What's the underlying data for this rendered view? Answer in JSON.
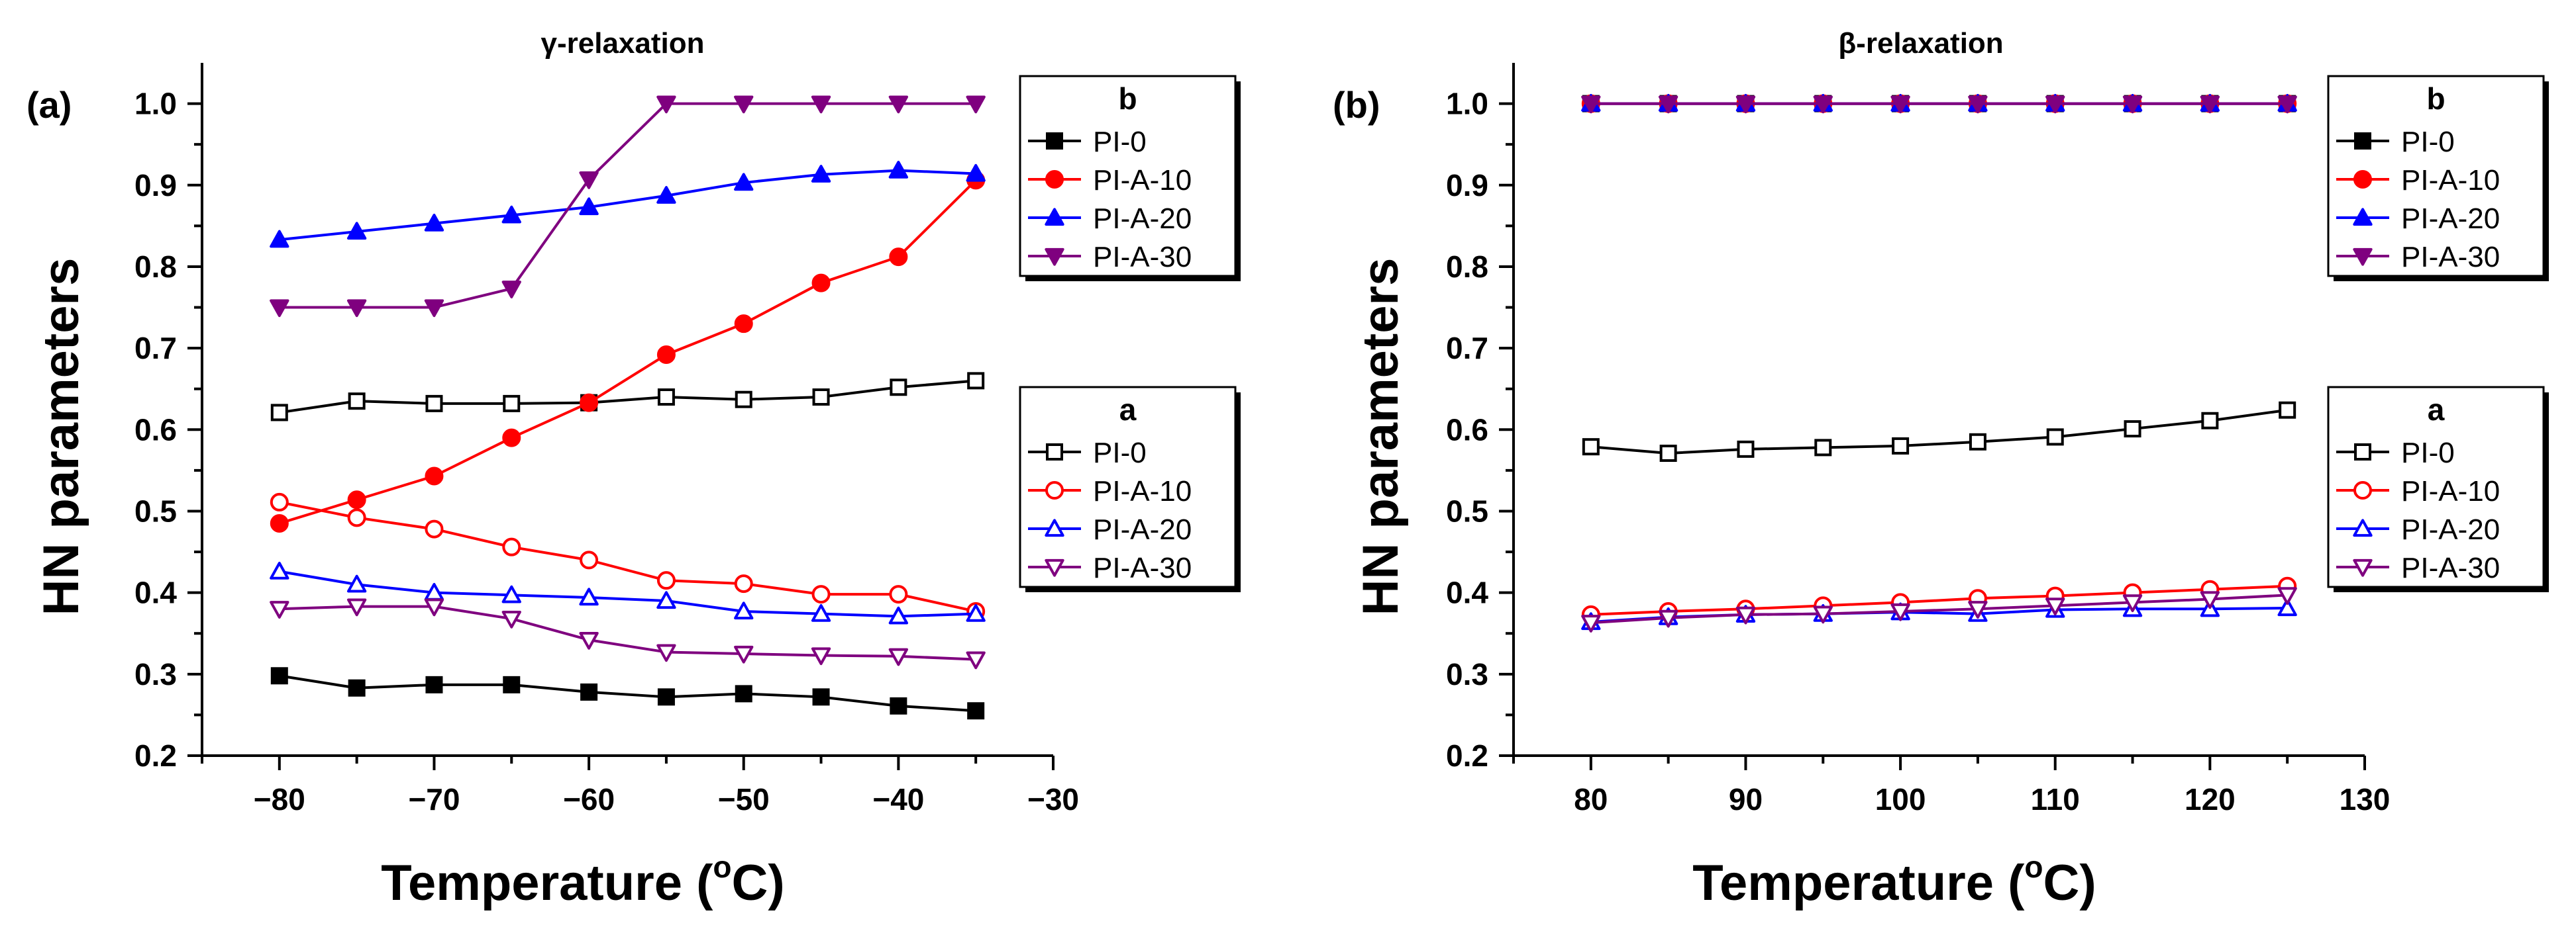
{
  "chart_data": [
    {
      "type": "line",
      "panel_label": "(a)",
      "title": "γ-relaxation",
      "xlabel": "Temperature (",
      "xlabel_sup": "o",
      "xlabel_end": "C)",
      "ylabel": "HN parameters",
      "xlim": [
        -85,
        -30
      ],
      "ylim": [
        0.2,
        1.05
      ],
      "xticks": [
        -80,
        -70,
        -60,
        -50,
        -40,
        -30
      ],
      "xtick_labels": [
        "−80",
        "−70",
        "−60",
        "−50",
        "−40",
        "−30"
      ],
      "yticks": [
        0.2,
        0.3,
        0.4,
        0.5,
        0.6,
        0.7,
        0.8,
        0.9,
        1.0
      ],
      "ytick_labels": [
        "0.2",
        "0.3",
        "0.4",
        "0.5",
        "0.6",
        "0.7",
        "0.8",
        "0.9",
        "1.0"
      ],
      "x": [
        -80,
        -75,
        -70,
        -65,
        -60,
        -55,
        -50,
        -45,
        -40,
        -35
      ],
      "legend_groups": [
        {
          "title": "b",
          "position": "top-right",
          "series": [
            {
              "name": "PI-0",
              "color": "#000000",
              "marker": "square",
              "filled": true,
              "values": [
                0.298,
                0.283,
                0.287,
                0.287,
                0.278,
                0.272,
                0.276,
                0.272,
                0.261,
                0.255
              ]
            },
            {
              "name": "PI-A-10",
              "color": "#ff0000",
              "marker": "circle",
              "filled": true,
              "values": [
                0.485,
                0.514,
                0.543,
                0.59,
                0.633,
                0.692,
                0.73,
                0.78,
                0.812,
                0.906
              ]
            },
            {
              "name": "PI-A-20",
              "color": "#0000ff",
              "marker": "triangle-up",
              "filled": true,
              "values": [
                0.833,
                0.843,
                0.853,
                0.863,
                0.873,
                0.887,
                0.903,
                0.913,
                0.918,
                0.914
              ]
            },
            {
              "name": "PI-A-30",
              "color": "#7f007f",
              "marker": "triangle-down",
              "filled": true,
              "values": [
                0.75,
                0.75,
                0.75,
                0.773,
                0.907,
                1.0,
                1.0,
                1.0,
                1.0,
                1.0
              ]
            }
          ]
        },
        {
          "title": "a",
          "position": "center-right",
          "series": [
            {
              "name": "PI-0",
              "color": "#000000",
              "marker": "square",
              "filled": false,
              "values": [
                0.621,
                0.635,
                0.632,
                0.632,
                0.633,
                0.64,
                0.637,
                0.64,
                0.652,
                0.66
              ]
            },
            {
              "name": "PI-A-10",
              "color": "#ff0000",
              "marker": "circle",
              "filled": false,
              "values": [
                0.511,
                0.492,
                0.478,
                0.456,
                0.44,
                0.415,
                0.411,
                0.398,
                0.398,
                0.377
              ]
            },
            {
              "name": "PI-A-20",
              "color": "#0000ff",
              "marker": "triangle-up",
              "filled": false,
              "values": [
                0.426,
                0.41,
                0.4,
                0.397,
                0.394,
                0.39,
                0.377,
                0.374,
                0.371,
                0.374
              ]
            },
            {
              "name": "PI-A-30",
              "color": "#7f007f",
              "marker": "triangle-down",
              "filled": false,
              "values": [
                0.38,
                0.383,
                0.383,
                0.368,
                0.342,
                0.327,
                0.325,
                0.323,
                0.322,
                0.318
              ]
            }
          ]
        }
      ]
    },
    {
      "type": "line",
      "panel_label": "(b)",
      "title": "β-relaxation",
      "xlabel": "Temperature (",
      "xlabel_sup": "o",
      "xlabel_end": "C)",
      "ylabel": "HN parameters",
      "xlim": [
        75,
        130
      ],
      "ylim": [
        0.2,
        1.05
      ],
      "xticks": [
        80,
        90,
        100,
        110,
        120,
        130
      ],
      "xtick_labels": [
        "80",
        "90",
        "100",
        "110",
        "120",
        "130"
      ],
      "yticks": [
        0.2,
        0.3,
        0.4,
        0.5,
        0.6,
        0.7,
        0.8,
        0.9,
        1.0
      ],
      "ytick_labels": [
        "0.2",
        "0.3",
        "0.4",
        "0.5",
        "0.6",
        "0.7",
        "0.8",
        "0.9",
        "1.0"
      ],
      "x": [
        80,
        85,
        90,
        95,
        100,
        105,
        110,
        115,
        120,
        125
      ],
      "legend_groups": [
        {
          "title": "b",
          "position": "top-right",
          "series": [
            {
              "name": "PI-0",
              "color": "#000000",
              "marker": "square",
              "filled": true,
              "values": [
                1.0,
                1.0,
                1.0,
                1.0,
                1.0,
                1.0,
                1.0,
                1.0,
                1.0,
                1.0
              ]
            },
            {
              "name": "PI-A-10",
              "color": "#ff0000",
              "marker": "circle",
              "filled": true,
              "values": [
                1.0,
                1.0,
                1.0,
                1.0,
                1.0,
                1.0,
                1.0,
                1.0,
                1.0,
                1.0
              ]
            },
            {
              "name": "PI-A-20",
              "color": "#0000ff",
              "marker": "triangle-up",
              "filled": true,
              "values": [
                1.0,
                1.0,
                1.0,
                1.0,
                1.0,
                1.0,
                1.0,
                1.0,
                1.0,
                1.0
              ]
            },
            {
              "name": "PI-A-30",
              "color": "#7f007f",
              "marker": "triangle-down",
              "filled": true,
              "values": [
                1.0,
                1.0,
                1.0,
                1.0,
                1.0,
                1.0,
                1.0,
                1.0,
                1.0,
                1.0
              ]
            }
          ]
        },
        {
          "title": "a",
          "position": "center-right",
          "series": [
            {
              "name": "PI-0",
              "color": "#000000",
              "marker": "square",
              "filled": false,
              "values": [
                0.579,
                0.571,
                0.576,
                0.578,
                0.58,
                0.585,
                0.591,
                0.601,
                0.611,
                0.624
              ]
            },
            {
              "name": "PI-A-10",
              "color": "#ff0000",
              "marker": "circle",
              "filled": false,
              "values": [
                0.373,
                0.377,
                0.38,
                0.384,
                0.388,
                0.393,
                0.396,
                0.4,
                0.404,
                0.408
              ]
            },
            {
              "name": "PI-A-20",
              "color": "#0000ff",
              "marker": "triangle-up",
              "filled": false,
              "values": [
                0.364,
                0.37,
                0.373,
                0.374,
                0.376,
                0.374,
                0.379,
                0.38,
                0.38,
                0.381
              ]
            },
            {
              "name": "PI-A-30",
              "color": "#7f007f",
              "marker": "triangle-down",
              "filled": false,
              "values": [
                0.363,
                0.369,
                0.373,
                0.374,
                0.377,
                0.38,
                0.384,
                0.388,
                0.392,
                0.397
              ]
            }
          ]
        }
      ]
    }
  ]
}
